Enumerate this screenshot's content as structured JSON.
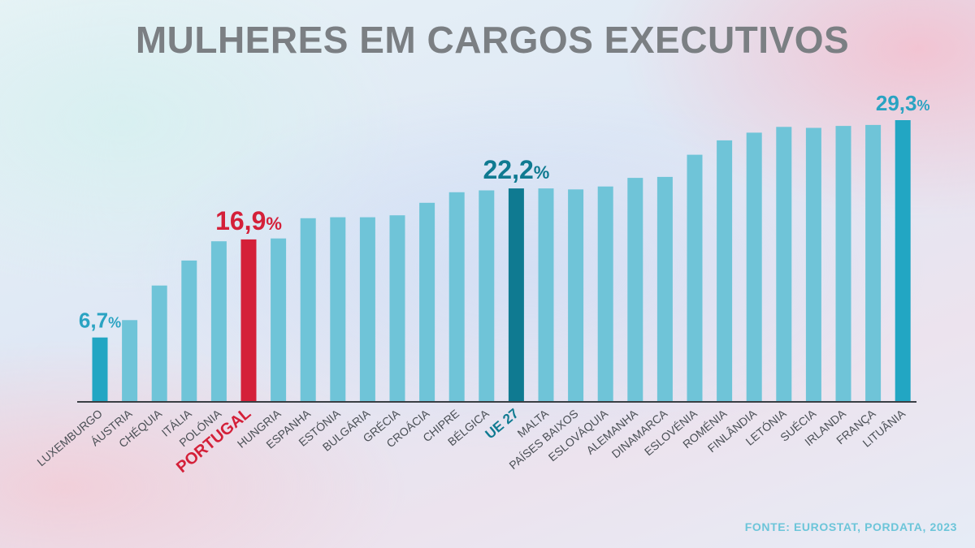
{
  "chart_data": {
    "type": "bar",
    "title": "MULHERES EM CARGOS EXECUTIVOS",
    "source": "FONTE: EUROSTAT, PORDATA, 2023",
    "categories": [
      "LUXEMBURGO",
      "ÁUSTRIA",
      "CHÉQUIA",
      "ITÁLIA",
      "POLÓNIA",
      "PORTUGAL",
      "HUNGRIA",
      "ESPANHA",
      "ESTÓNIA",
      "BULGÁRIA",
      "GRÉCIA",
      "CROÁCIA",
      "CHIPRE",
      "BÉLGICA",
      "UE 27",
      "MALTA",
      "PAÍSES BAIXOS",
      "ESLOVÁQUIA",
      "ALEMANHA",
      "DINAMARCA",
      "ESLOVÉNIA",
      "ROMÉNIA",
      "FINLÂNDIA",
      "LETÓNIA",
      "SUÉCIA",
      "IRLANDA",
      "FRANÇA",
      "LITUÂNIA"
    ],
    "values": [
      6.7,
      8.5,
      12.1,
      14.7,
      16.7,
      16.9,
      17.0,
      19.1,
      19.2,
      19.2,
      19.4,
      20.7,
      21.8,
      22.0,
      22.2,
      22.2,
      22.1,
      22.4,
      23.3,
      23.4,
      25.7,
      27.2,
      28.0,
      28.6,
      28.5,
      28.7,
      28.8,
      29.3
    ],
    "ylim": [
      0,
      29.3
    ],
    "highlight": {
      "PORTUGAL": "#d42039",
      "UE 27": "#0f7a91",
      "LUXEMBURGO": "#22a6c3",
      "LITUÂNIA": "#22a6c3"
    },
    "data_labels": [
      {
        "category": "LUXEMBURGO",
        "text": "6,7",
        "unit": "%",
        "color": "#2aa3c2"
      },
      {
        "category": "PORTUGAL",
        "text": "16,9",
        "unit": "%",
        "color": "#d42039"
      },
      {
        "category": "UE 27",
        "text": "22,2",
        "unit": "%",
        "color": "#0f7a91"
      },
      {
        "category": "LITUÂNIA",
        "text": "29,3",
        "unit": "%",
        "color": "#2aa3c2"
      }
    ],
    "bar_color": "#6fc4d8",
    "axis_color": "#3a3f44",
    "grid": false,
    "legend": "none"
  }
}
